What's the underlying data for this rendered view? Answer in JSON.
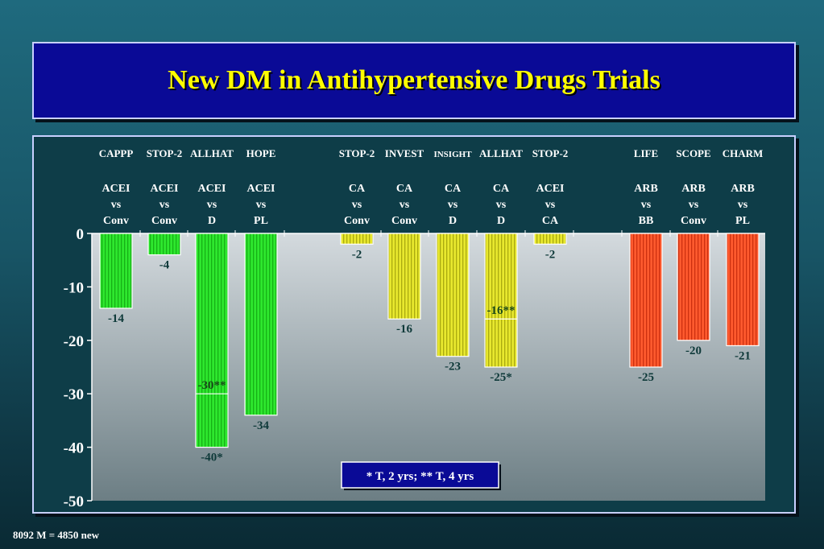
{
  "title": "New DM in Antihypertensive Drugs Trials",
  "footer_note": "8092 M = 4850 new",
  "chart_data": {
    "type": "bar",
    "ylim": [
      -50,
      0
    ],
    "yticks": [
      0,
      -10,
      -20,
      -30,
      -40,
      -50
    ],
    "grid": false,
    "colors": {
      "ACEI": "#22dd22",
      "CA": "#dddd22",
      "ARB": "#ff4a22"
    },
    "bars": [
      {
        "trial": "CAPPP",
        "comparison": [
          "ACEI",
          "vs",
          "Conv"
        ],
        "group": "ACEI",
        "value": -14,
        "label": "-14"
      },
      {
        "trial": "STOP-2",
        "comparison": [
          "ACEI",
          "vs",
          "Conv"
        ],
        "group": "ACEI",
        "value": -4,
        "label": "-4"
      },
      {
        "trial": "ALLHAT",
        "comparison": [
          "ACEI",
          "vs",
          "D"
        ],
        "group": "ACEI",
        "value": -40,
        "label": "-40*",
        "inner_value": -30,
        "inner_label": "-30**"
      },
      {
        "trial": "HOPE",
        "comparison": [
          "ACEI",
          "vs",
          "PL"
        ],
        "group": "ACEI",
        "value": -34,
        "label": "-34"
      },
      {
        "trial": "STOP-2",
        "comparison": [
          "CA",
          "vs",
          "Conv"
        ],
        "group": "CA",
        "value": -2,
        "label": "-2"
      },
      {
        "trial": "INVEST",
        "comparison": [
          "CA",
          "vs",
          "Conv"
        ],
        "group": "CA",
        "value": -16,
        "label": "-16"
      },
      {
        "trial": "INSIGHT",
        "comparison": [
          "CA",
          "vs",
          "D"
        ],
        "group": "CA",
        "value": -23,
        "label": "-23"
      },
      {
        "trial": "ALLHAT",
        "comparison": [
          "CA",
          "vs",
          "D"
        ],
        "group": "CA",
        "value": -25,
        "label": "-25*",
        "inner_value": -16,
        "inner_label": "-16**"
      },
      {
        "trial": "STOP-2",
        "comparison": [
          "ACEI",
          "vs",
          "CA"
        ],
        "group": "CA",
        "value": -2,
        "label": "-2"
      },
      {
        "trial": "LIFE",
        "comparison": [
          "ARB",
          "vs",
          "BB"
        ],
        "group": "ARB",
        "value": -25,
        "label": "-25"
      },
      {
        "trial": "SCOPE",
        "comparison": [
          "ARB",
          "vs",
          "Conv"
        ],
        "group": "ARB",
        "value": -20,
        "label": "-20"
      },
      {
        "trial": "CHARM",
        "comparison": [
          "ARB",
          "vs",
          "PL"
        ],
        "group": "ARB",
        "value": -21,
        "label": "-21"
      }
    ],
    "legend_note": "* T, 2 yrs; ** T, 4 yrs"
  }
}
